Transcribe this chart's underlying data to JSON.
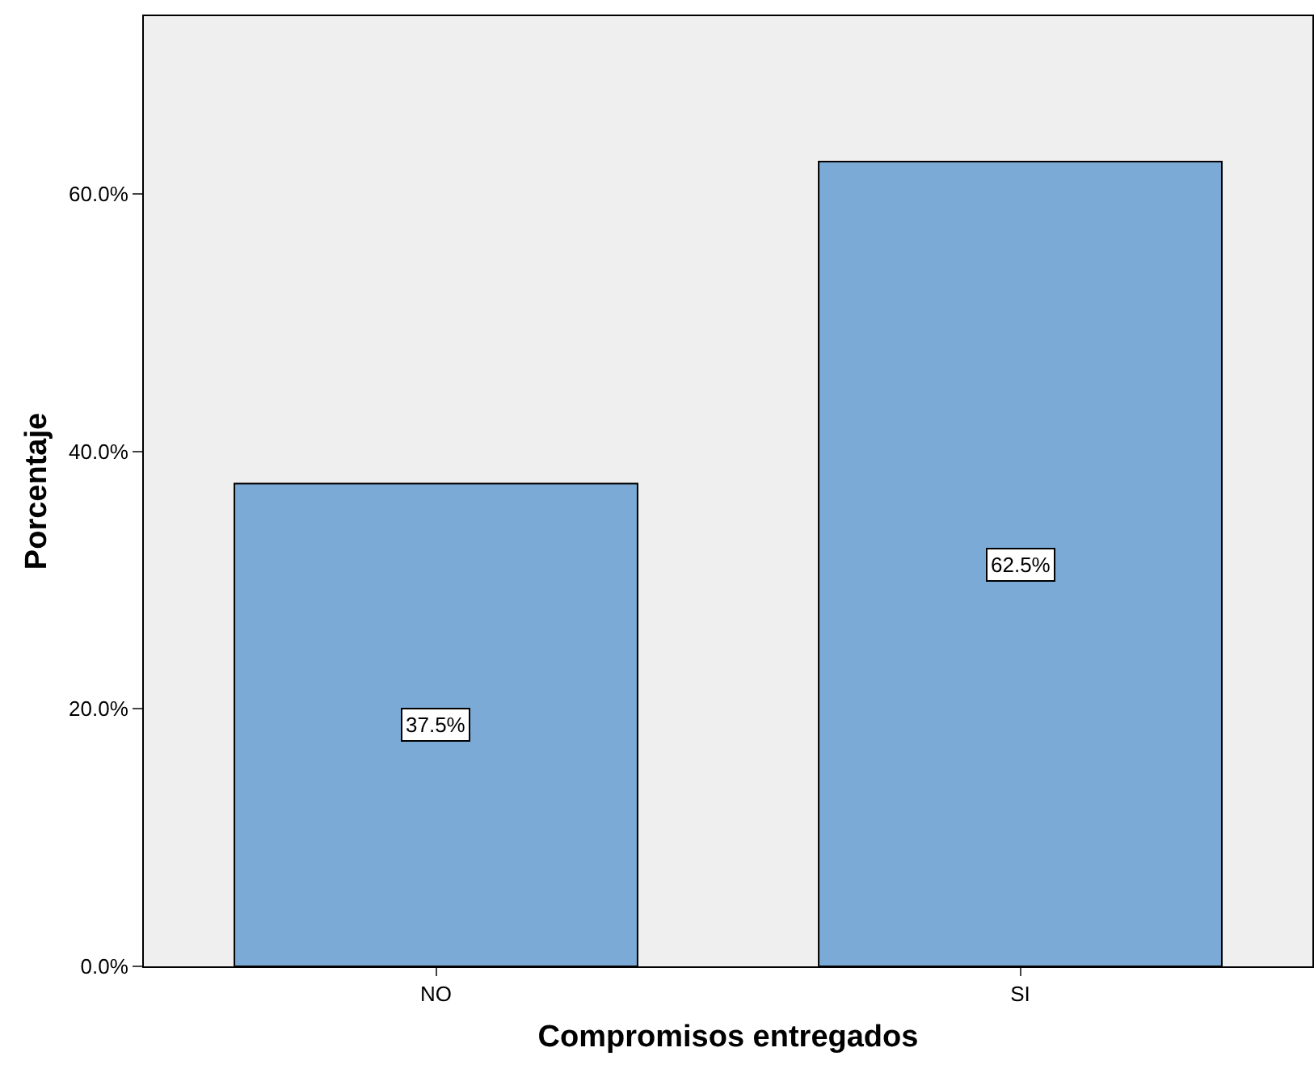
{
  "chart_data": {
    "type": "bar",
    "xlabel": "Compromisos entregados",
    "ylabel": "Porcentaje",
    "categories": [
      "NO",
      "SI"
    ],
    "values": [
      37.5,
      62.5
    ],
    "value_labels": [
      "37.5%",
      "62.5%"
    ],
    "color": "#7baad6",
    "ylim": [
      0,
      73.8
    ],
    "yticks": [
      {
        "value": 0,
        "label": "0.0%"
      },
      {
        "value": 20,
        "label": "20.0%"
      },
      {
        "value": 40,
        "label": "40.0%"
      },
      {
        "value": 60,
        "label": "60.0%"
      }
    ],
    "grid": false,
    "legend": false
  }
}
